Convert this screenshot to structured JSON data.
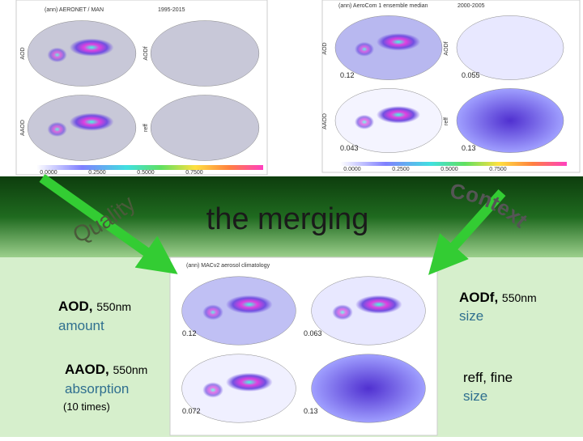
{
  "panels": {
    "aeronet": {
      "title": "(ann) AERONET / MAN",
      "period": "1995-2015",
      "labels": [
        "AOD",
        "AODf",
        "AAOD",
        "reff"
      ],
      "colorbar": [
        "0.0000",
        "0.2500",
        "0.5000",
        "0.7500"
      ]
    },
    "aerocom": {
      "title": "(ann) AeroCom 1 ensemble median",
      "period": "2000-2005",
      "labels": [
        "AOD",
        "AODf",
        "AAOD",
        "reff"
      ],
      "values": [
        "0.12",
        "0.055",
        "0.043",
        "0.13"
      ],
      "colorbar": [
        "0.0000",
        "0.2500",
        "0.5000",
        "0.7500"
      ]
    },
    "macv2": {
      "title": "(ann) MACv2 aerosol climatology",
      "values": [
        "0.12",
        "0.063",
        "0.072",
        "0.13"
      ]
    }
  },
  "banner": {
    "left": "Quality",
    "center": "the merging",
    "right": "Context"
  },
  "left_labels": [
    {
      "name": "AOD,",
      "wavelength": "550nm",
      "meaning": "amount"
    },
    {
      "name": "AAOD,",
      "wavelength": "550nm",
      "meaning": "absorption",
      "note": "(10 times)"
    }
  ],
  "right_labels": [
    {
      "name": "AODf,",
      "wavelength": "550nm",
      "meaning": "size"
    },
    {
      "name": "reff, fine",
      "meaning": "size"
    }
  ]
}
